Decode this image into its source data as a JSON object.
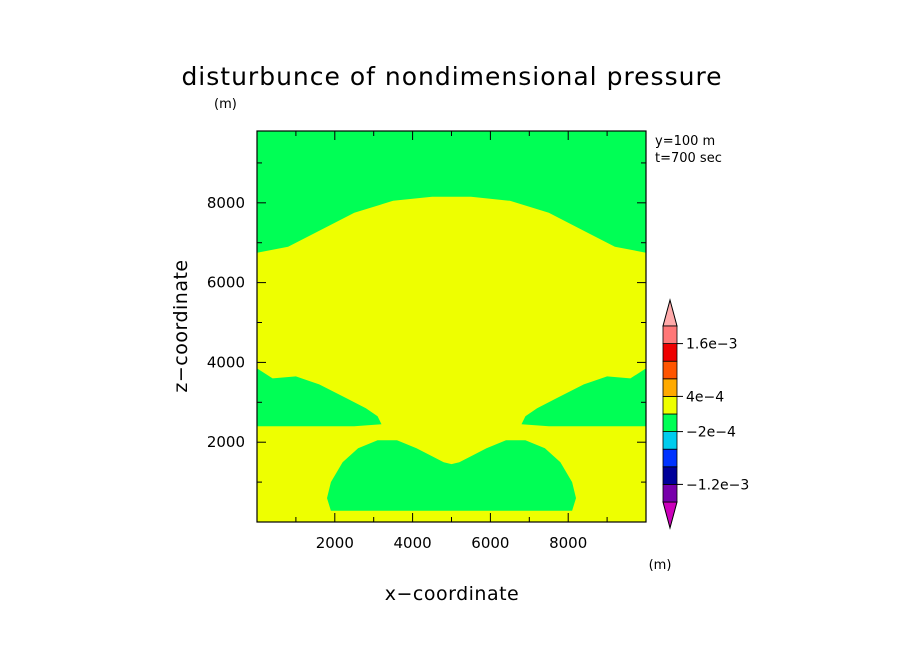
{
  "chart_data": {
    "type": "heatmap",
    "title": "disturbunce of nondimensional pressure",
    "title_unit": "(m)",
    "xlabel": "x−coordinate",
    "ylabel": "z−coordinate",
    "xlim": [
      0,
      10000
    ],
    "ylim": [
      0,
      9800
    ],
    "x_ticks": [
      2000,
      4000,
      6000,
      8000
    ],
    "x_tick_labels": [
      "2000",
      "4000",
      "6000",
      "8000"
    ],
    "y_ticks": [
      2000,
      4000,
      6000,
      8000
    ],
    "y_tick_labels": [
      "2000",
      "4000",
      "6000",
      "8000"
    ],
    "info_lines": [
      "y=100  m",
      "t=700  sec"
    ],
    "colorbar": {
      "unit": "(m)",
      "levels": [
        -0.0016,
        -0.0012,
        -0.0008,
        -0.0004,
        -0.0002,
        0.0002,
        0.0004,
        0.0008,
        0.0012,
        0.0016,
        0.002
      ],
      "colors": [
        "#cc00bb",
        "#7700aa",
        "#000099",
        "#0033ff",
        "#00ccee",
        "#00ff55",
        "#eeff00",
        "#ffaa00",
        "#ff5500",
        "#ee0000",
        "#ff7777",
        "#ffaaaa"
      ],
      "labels": [
        {
          "level": 0.0016,
          "text": "1.6e−3"
        },
        {
          "level": 0.0004,
          "text": "4e−4"
        },
        {
          "level": -0.0002,
          "text": "−2e−4"
        },
        {
          "level": -0.0012,
          "text": "−1.2e−3"
        }
      ]
    },
    "regions": [
      {
        "name": "background",
        "value_range": "2e-4 to 4e-4",
        "color": "#eeff00",
        "points": [
          [
            0,
            0
          ],
          [
            10000,
            0
          ],
          [
            10000,
            9800
          ],
          [
            0,
            9800
          ]
        ]
      },
      {
        "name": "upper-band",
        "value_range": "-2e-4 to 2e-4",
        "color": "#00ff55",
        "points": [
          [
            0,
            9800
          ],
          [
            10000,
            9800
          ],
          [
            10000,
            6750
          ],
          [
            9200,
            6900
          ],
          [
            8500,
            7250
          ],
          [
            7500,
            7750
          ],
          [
            6500,
            8050
          ],
          [
            5500,
            8150
          ],
          [
            4500,
            8150
          ],
          [
            3500,
            8050
          ],
          [
            2500,
            7750
          ],
          [
            1500,
            7250
          ],
          [
            800,
            6900
          ],
          [
            0,
            6750
          ]
        ]
      },
      {
        "name": "left-lobe",
        "value_range": "-2e-4 to 2e-4",
        "color": "#00ff55",
        "points": [
          [
            0,
            3850
          ],
          [
            400,
            3600
          ],
          [
            1000,
            3650
          ],
          [
            1600,
            3450
          ],
          [
            2300,
            3100
          ],
          [
            2800,
            2850
          ],
          [
            3100,
            2650
          ],
          [
            3200,
            2450
          ],
          [
            2500,
            2400
          ],
          [
            1600,
            2400
          ],
          [
            0,
            2400
          ]
        ]
      },
      {
        "name": "right-lobe",
        "value_range": "-2e-4 to 2e-4",
        "color": "#00ff55",
        "points": [
          [
            10000,
            3850
          ],
          [
            9600,
            3600
          ],
          [
            9000,
            3650
          ],
          [
            8400,
            3450
          ],
          [
            7700,
            3100
          ],
          [
            7200,
            2850
          ],
          [
            6900,
            2650
          ],
          [
            6800,
            2450
          ],
          [
            7500,
            2400
          ],
          [
            8400,
            2400
          ],
          [
            10000,
            2400
          ]
        ]
      },
      {
        "name": "bottom-mounds",
        "value_range": "-2e-4 to 2e-4",
        "color": "#00ff55",
        "points": [
          [
            1900,
            280
          ],
          [
            1800,
            600
          ],
          [
            1900,
            1000
          ],
          [
            2200,
            1500
          ],
          [
            2600,
            1850
          ],
          [
            3100,
            2050
          ],
          [
            3600,
            2050
          ],
          [
            4100,
            1850
          ],
          [
            4500,
            1650
          ],
          [
            4800,
            1500
          ],
          [
            5000,
            1450
          ],
          [
            5200,
            1500
          ],
          [
            5500,
            1650
          ],
          [
            5900,
            1850
          ],
          [
            6400,
            2050
          ],
          [
            6900,
            2050
          ],
          [
            7400,
            1850
          ],
          [
            7800,
            1500
          ],
          [
            8100,
            1000
          ],
          [
            8200,
            600
          ],
          [
            8100,
            280
          ]
        ]
      }
    ]
  }
}
